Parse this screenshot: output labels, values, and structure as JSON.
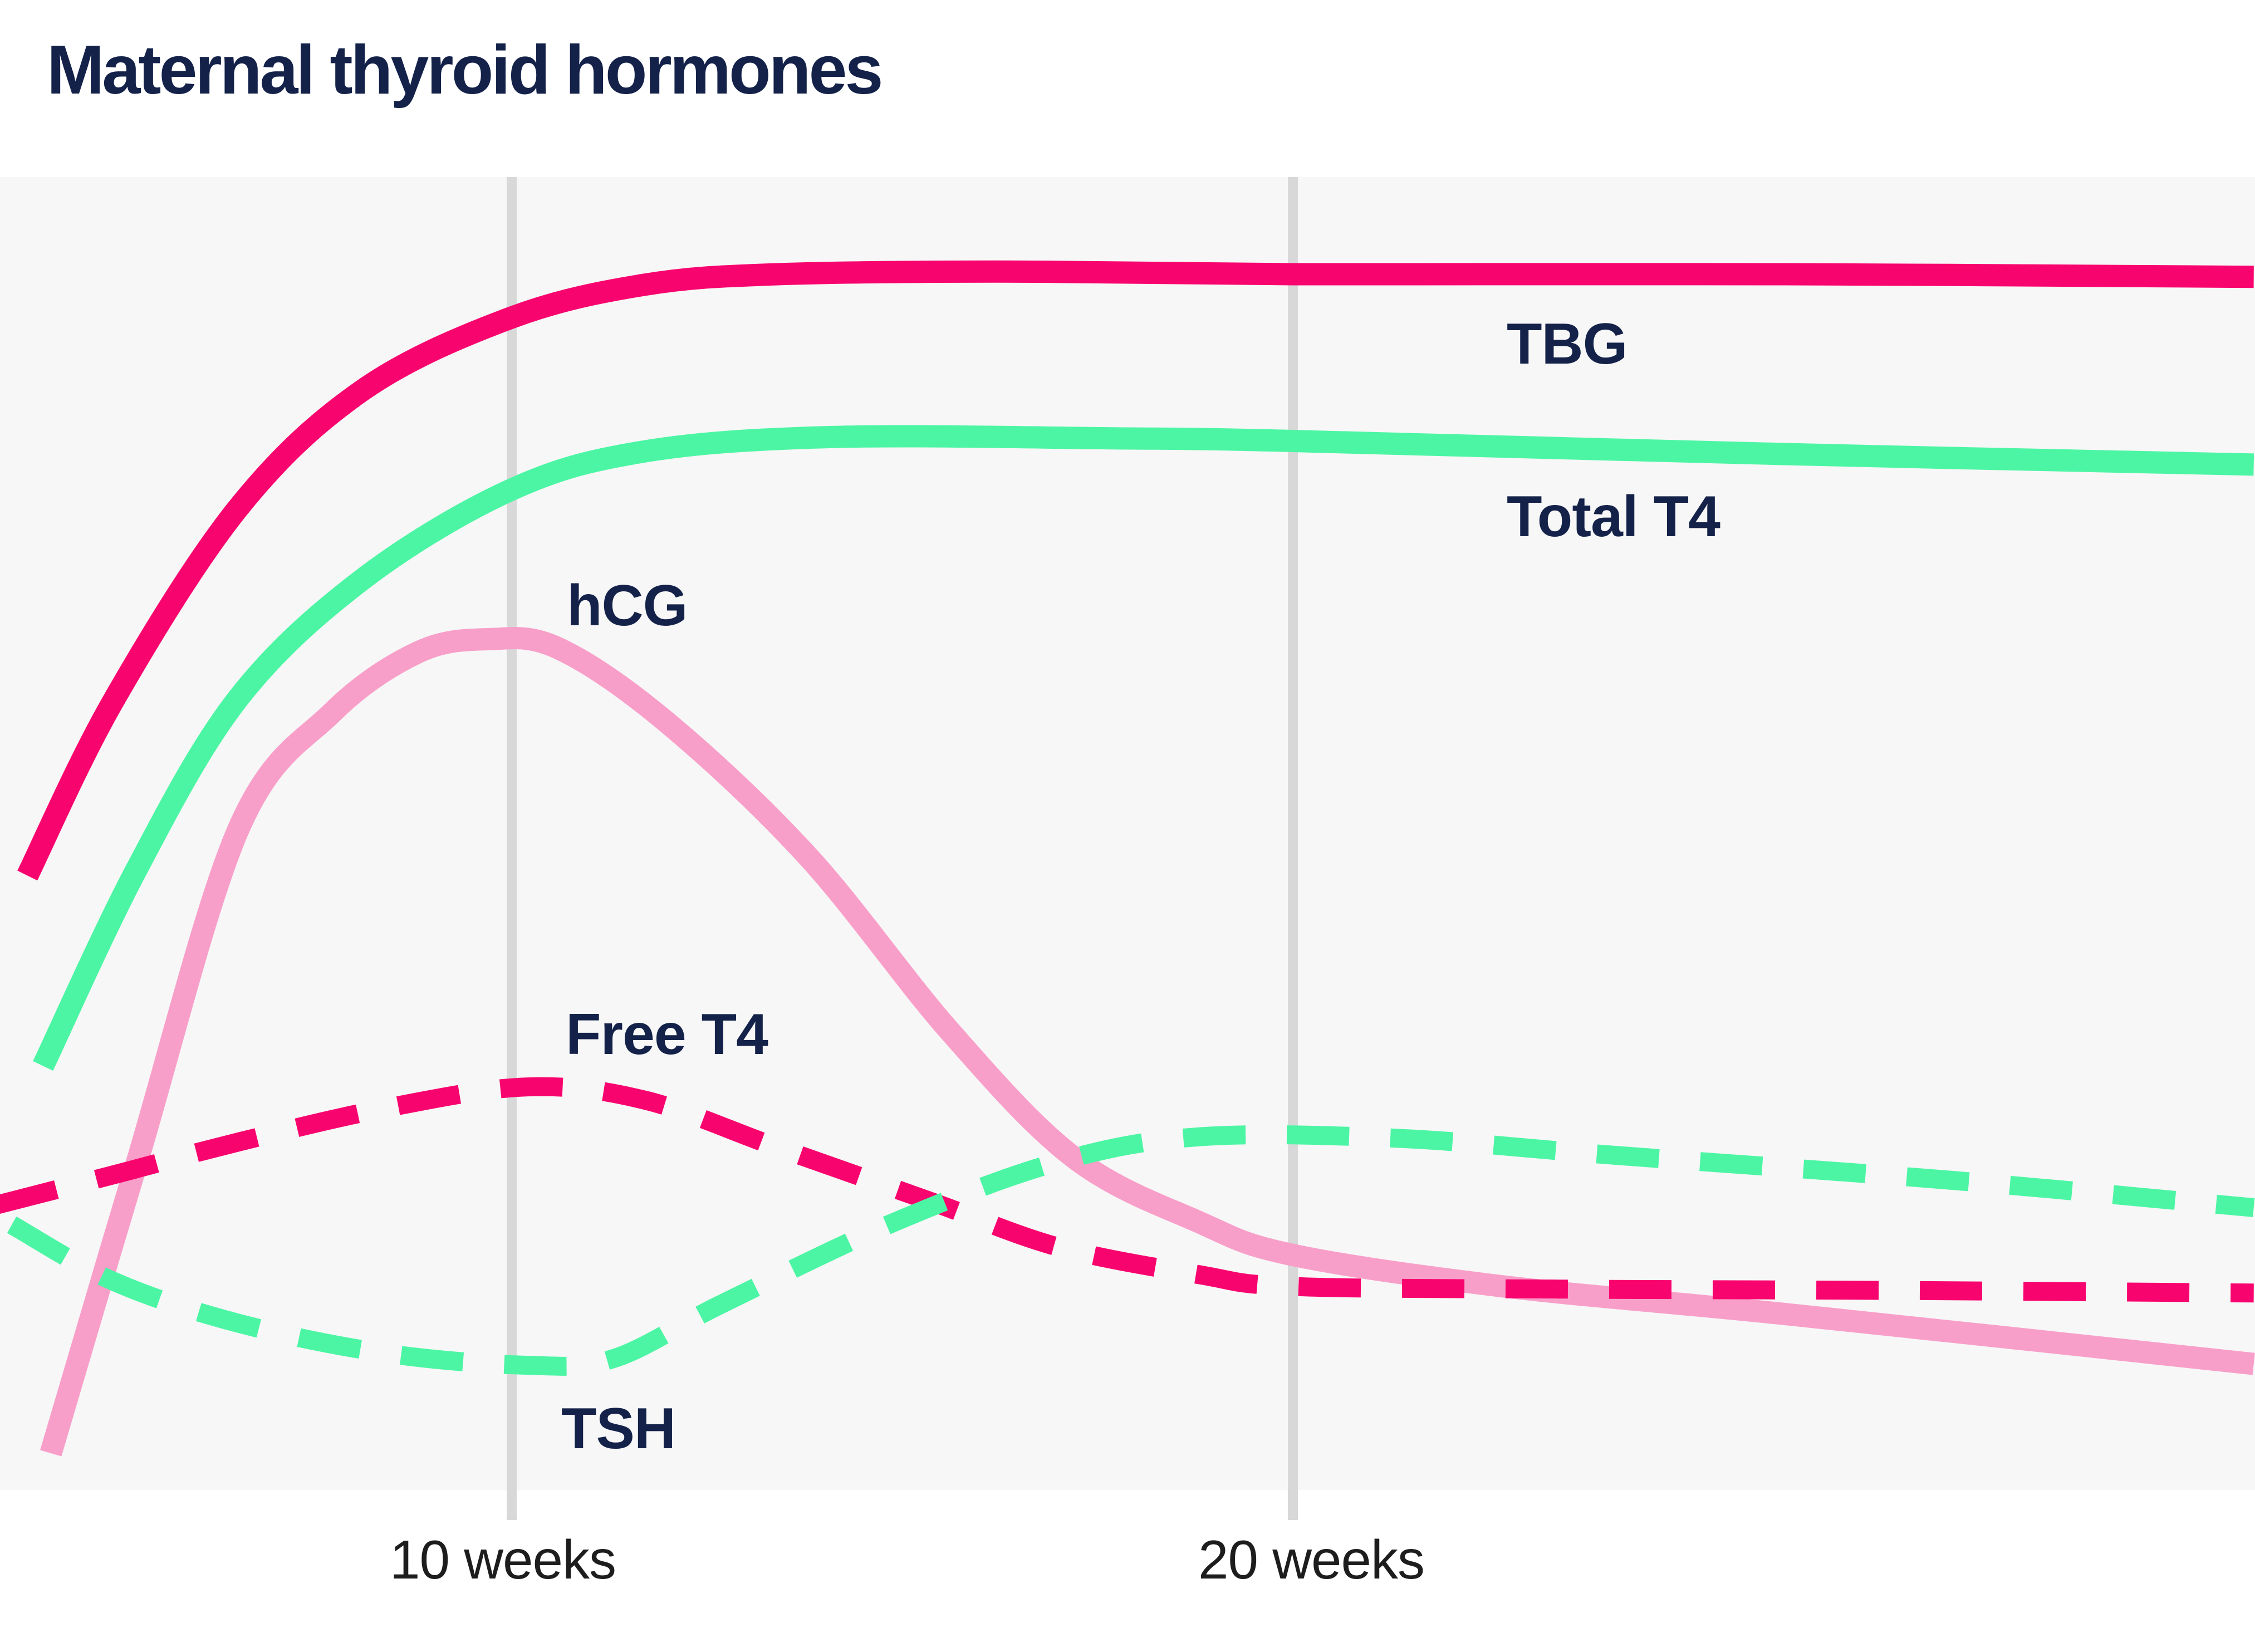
{
  "page": {
    "title": "Maternal thyroid hormones"
  },
  "colors": {
    "magenta": "#F8046E",
    "mint_green": "#4CF5A4",
    "light_pink": "#F89FC9",
    "label_navy": "#14224A",
    "tick_text": "#1d1d1d",
    "gridline": "#D8D8D8",
    "plot_background": "#F7F7F7",
    "page_background": "#FFFFFF"
  },
  "chart_data": {
    "type": "line",
    "title": "Maternal thyroid hormones",
    "x_axis": {
      "unit": "weeks",
      "range_weeks": [
        3.4,
        32.3
      ],
      "gridlines": true,
      "ticks": [
        {
          "week": 10,
          "label": "10 weeks"
        },
        {
          "week": 20,
          "label": "20 weeks"
        }
      ]
    },
    "y_axis": {
      "label": "",
      "note": "qualitative hormone level, normalized 0-100, no ticks shown",
      "range": [
        0,
        100
      ]
    },
    "legend_position": "inline-labels",
    "series": [
      {
        "name": "TBG",
        "style": "solid",
        "color": "#F8046E",
        "points": [
          [
            3.8,
            46.8
          ],
          [
            4.9,
            60.1
          ],
          [
            6.5,
            74.8
          ],
          [
            8.1,
            83.8
          ],
          [
            10,
            89.3
          ],
          [
            11.7,
            91.8
          ],
          [
            13.4,
            92.6
          ],
          [
            16.3,
            92.8
          ],
          [
            20,
            92.6
          ],
          [
            26.3,
            92.6
          ],
          [
            32.3,
            92.4
          ]
        ]
      },
      {
        "name": "Total T4",
        "style": "solid",
        "color": "#4CF5A4",
        "points": [
          [
            4,
            32.3
          ],
          [
            5.2,
            47.3
          ],
          [
            6.5,
            60.3
          ],
          [
            8.1,
            69.4
          ],
          [
            10,
            76.2
          ],
          [
            11.7,
            79.1
          ],
          [
            14.1,
            80.2
          ],
          [
            17.7,
            80.1
          ],
          [
            20,
            79.9
          ],
          [
            26.3,
            78.9
          ],
          [
            32.3,
            78.1
          ]
        ]
      },
      {
        "name": "hCG",
        "style": "solid",
        "color": "#F89FC9",
        "points": [
          [
            4.1,
            2.8
          ],
          [
            5.2,
            24.9
          ],
          [
            6.5,
            50.3
          ],
          [
            7.7,
            59.2
          ],
          [
            8.8,
            63.8
          ],
          [
            9.7,
            64.8
          ],
          [
            10.6,
            64.1
          ],
          [
            12,
            58.4
          ],
          [
            13.8,
            48.2
          ],
          [
            15.6,
            35
          ],
          [
            17.2,
            25.3
          ],
          [
            18.8,
            20.4
          ],
          [
            20,
            17.9
          ],
          [
            22.7,
            15.5
          ],
          [
            26.3,
            13.4
          ],
          [
            32.3,
            9.6
          ]
        ]
      },
      {
        "name": "Free T4",
        "style": "dashed",
        "color": "#F8046E",
        "points": [
          [
            3.4,
            21.7
          ],
          [
            4.9,
            24
          ],
          [
            6.5,
            26.5
          ],
          [
            8.4,
            29.1
          ],
          [
            10.2,
            30.7
          ],
          [
            11.7,
            29.7
          ],
          [
            13.4,
            26.1
          ],
          [
            15.4,
            21.9
          ],
          [
            17,
            18.5
          ],
          [
            18.8,
            16.4
          ],
          [
            20,
            15.5
          ],
          [
            23.4,
            15.3
          ],
          [
            27.7,
            15.2
          ],
          [
            32.3,
            15
          ]
        ]
      },
      {
        "name": "TSH",
        "style": "dashed",
        "color": "#4CF5A4",
        "points": [
          [
            3.6,
            20.2
          ],
          [
            4.9,
            15.9
          ],
          [
            6.5,
            12.7
          ],
          [
            8.4,
            10.4
          ],
          [
            10.2,
            9.5
          ],
          [
            11.3,
            10
          ],
          [
            12.7,
            14.2
          ],
          [
            14.9,
            20.4
          ],
          [
            17,
            25
          ],
          [
            18.8,
            26.9
          ],
          [
            21.3,
            26.8
          ],
          [
            24.1,
            25.5
          ],
          [
            28.4,
            23.6
          ],
          [
            32.3,
            21.5
          ]
        ]
      }
    ]
  }
}
